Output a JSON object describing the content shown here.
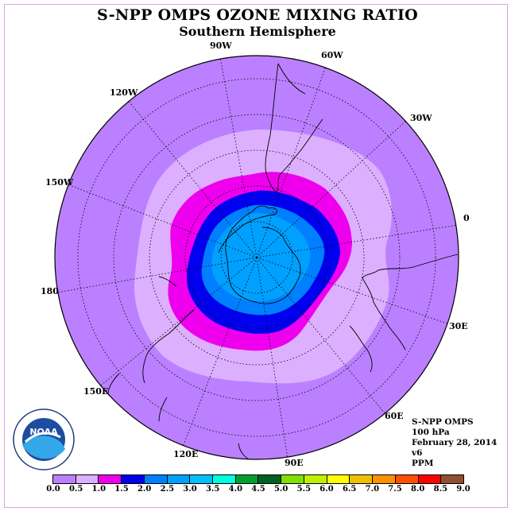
{
  "title": "S-NPP OMPS OZONE MIXING RATIO",
  "subtitle": "Southern Hemisphere",
  "longitude_labels": [
    "90W",
    "60W",
    "30W",
    "0",
    "30E",
    "60E",
    "90E",
    "120E",
    "150E",
    "180",
    "150W",
    "120W"
  ],
  "info": {
    "instrument": "S-NPP OMPS",
    "level": "100 hPa",
    "date": "February 28, 2014",
    "version": "v6",
    "units": "PPM"
  },
  "logo_text": "NOAA",
  "colorbar": {
    "ticks": [
      "0.0",
      "0.5",
      "1.0",
      "1.5",
      "2.0",
      "2.5",
      "3.0",
      "3.5",
      "4.0",
      "4.5",
      "5.0",
      "5.5",
      "6.0",
      "6.5",
      "7.0",
      "7.5",
      "8.0",
      "8.5",
      "9.0"
    ],
    "colors": [
      "#bb80ff",
      "#dcb0ff",
      "#ee00ee",
      "#0000ee",
      "#0080ff",
      "#00a0ff",
      "#00c0ff",
      "#00ffe0",
      "#00a030",
      "#006020",
      "#80e000",
      "#c0f000",
      "#ffff00",
      "#f0c000",
      "#ff9000",
      "#ff5000",
      "#ff0000",
      "#905030"
    ]
  },
  "colors": {
    "background_purple": "#bb80ff",
    "light_lilac": "#dcb0ff",
    "magenta": "#ee00ee",
    "dark_blue": "#0000ee",
    "mid_blue": "#0080ff"
  }
}
